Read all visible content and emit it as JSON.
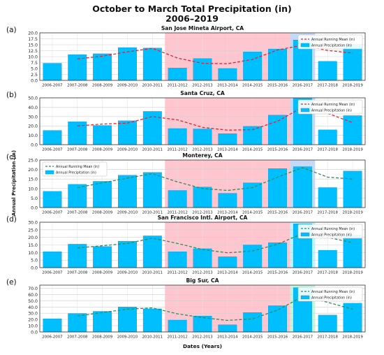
{
  "figure": {
    "title_line1": "October to March Total Precipitation (in)",
    "title_line2": "2006–2019",
    "shared_ylabel": "Annual Precipitation (in)",
    "shared_xlabel": "Dates (Years)"
  },
  "colors": {
    "bar": "#00bfff",
    "bar_edge": "#1d90d0",
    "mean_line": "#e8222a",
    "mean_line_alt": "#2e8b57",
    "pink_band": "#ffc6d0",
    "blue_band": "#c5d8f6",
    "cyan_band": "#bff3ff",
    "green_band": "#c6f5dc"
  },
  "chart_data": [
    {
      "type": "bar",
      "panel_label": "(a)",
      "title": "San Jose Mineta Airport, CA",
      "categories": [
        "2006-2007",
        "2007-2008",
        "2008-2009",
        "2009-2010",
        "2010-2011",
        "2011-2012",
        "2012-2013",
        "2013-2014",
        "2014-2015",
        "2015-2016",
        "2016-2017",
        "2017-2018",
        "2018-2019"
      ],
      "series": [
        {
          "name": "Annual Precipitation (in)",
          "kind": "bar",
          "values": [
            7.2,
            10.8,
            11.2,
            13.8,
            13.6,
            5.2,
            9.2,
            5.0,
            12.0,
            13.2,
            17.0,
            8.0,
            15.2
          ]
        },
        {
          "name": "Annual Running Mean (in)",
          "kind": "line",
          "values": [
            null,
            9.0,
            10.2,
            12.0,
            13.5,
            9.4,
            7.2,
            7.0,
            8.8,
            12.8,
            14.8,
            12.6,
            11.5
          ]
        }
      ],
      "ylim": [
        0,
        20
      ],
      "yticks": [
        "0.0",
        "2.5",
        "5.0",
        "7.5",
        "10.0",
        "12.5",
        "15.0",
        "17.5",
        "20.0"
      ],
      "legend_position": "top-right",
      "line_style": "dashed",
      "bands": [
        {
          "from": "2011-2012",
          "to": "2015-2016",
          "color": "pink"
        },
        {
          "from": "2016-2017",
          "to": "2016-2017",
          "color": "blue"
        }
      ]
    },
    {
      "type": "bar",
      "panel_label": "(b)",
      "title": "Santa Cruz, CA",
      "categories": [
        "2006-2007",
        "2007-2008",
        "2008-2009",
        "2009-2010",
        "2010-2011",
        "2011-2012",
        "2012-2013",
        "2013-2014",
        "2014-2015",
        "2015-2016",
        "2016-2017",
        "2017-2018",
        "2018-2019"
      ],
      "series": [
        {
          "name": "Annual Precipitation (in)",
          "kind": "bar",
          "values": [
            15.2,
            24.5,
            20.5,
            25.5,
            35.5,
            17.2,
            16.8,
            11.8,
            19.5,
            31.5,
            49.5,
            15.8,
            31.0
          ]
        },
        {
          "name": "Annual Running Mean (in)",
          "kind": "line",
          "values": [
            null,
            20.0,
            22.0,
            23.0,
            30.0,
            26.5,
            18.5,
            15.5,
            16.0,
            25.0,
            40.0,
            33.5,
            23.5
          ]
        }
      ],
      "ylim": [
        0,
        50
      ],
      "yticks": [
        "0.0",
        "10.0",
        "20.0",
        "30.0",
        "40.0",
        "50.0"
      ],
      "legend_position": "top-right",
      "line_style": "dashed",
      "bands": [
        {
          "from": "2011-2012",
          "to": "2015-2016",
          "color": "pink"
        },
        {
          "from": "2016-2017",
          "to": "2016-2017",
          "color": "blue"
        }
      ]
    },
    {
      "type": "bar",
      "panel_label": "(c)",
      "title": "Monterey, CA",
      "categories": [
        "2006-2007",
        "2007-2008",
        "2008-2009",
        "2009-2010",
        "2010-2011",
        "2011-2012",
        "2012-2013",
        "2013-2014",
        "2014-2015",
        "2015-2016",
        "2016-2017",
        "2017-2018",
        "2018-2019"
      ],
      "series": [
        {
          "name": "Annual Precipitation (in)",
          "kind": "bar",
          "values": [
            8.5,
            12.2,
            13.8,
            17.0,
            18.5,
            9.0,
            10.8,
            7.5,
            13.0,
            20.5,
            21.5,
            10.5,
            19.2
          ]
        },
        {
          "name": "Annual Running Mean (in)",
          "kind": "line",
          "values": [
            null,
            10.5,
            13.0,
            15.5,
            17.8,
            13.5,
            10.0,
            9.0,
            10.5,
            16.0,
            21.0,
            16.0,
            15.0
          ]
        }
      ],
      "ylim": [
        0,
        25
      ],
      "yticks": [
        "0.0",
        "5.0",
        "10.0",
        "15.0",
        "20.0",
        "25.0"
      ],
      "legend_position": "top-left",
      "line_style": "dashed",
      "bands": [
        {
          "from": "2011-2012",
          "to": "2015-2016",
          "color": "pink"
        },
        {
          "from": "2016-2017",
          "to": "2016-2017",
          "color": "blue"
        }
      ]
    },
    {
      "type": "bar",
      "panel_label": "(d)",
      "title": "San Francisco Intl. Airport, CA",
      "categories": [
        "2006-2007",
        "2007-2008",
        "2008-2009",
        "2009-2010",
        "2010-2011",
        "2011-2012",
        "2012-2013",
        "2013-2014",
        "2014-2015",
        "2015-2016",
        "2016-2017",
        "2017-2018",
        "2018-2019"
      ],
      "series": [
        {
          "name": "Annual Precipitation (in)",
          "kind": "bar",
          "values": [
            10.5,
            15.5,
            14.0,
            17.5,
            21.0,
            10.5,
            12.5,
            7.2,
            15.0,
            16.5,
            29.0,
            11.5,
            21.5
          ]
        },
        {
          "name": "Annual Running Mean (in)",
          "kind": "line",
          "values": [
            null,
            13.0,
            14.5,
            16.0,
            19.5,
            16.0,
            12.0,
            9.8,
            11.0,
            15.5,
            22.5,
            20.0,
            16.5
          ]
        }
      ],
      "ylim": [
        0,
        30
      ],
      "yticks": [
        "0.0",
        "5.0",
        "10.0",
        "15.0",
        "20.0",
        "25.0",
        "30.0"
      ],
      "legend_position": "top-right",
      "line_style": "dashed",
      "bands": [
        {
          "from": "2011-2012",
          "to": "2015-2016",
          "color": "pink"
        },
        {
          "from": "2016-2017",
          "to": "2016-2017",
          "color": "cyan"
        }
      ]
    },
    {
      "type": "bar",
      "panel_label": "(e)",
      "title": "Big Sur, CA",
      "categories": [
        "2006-2007",
        "2007-2008",
        "2008-2009",
        "2009-2010",
        "2010-2011",
        "2011-2012",
        "2012-2013",
        "2013-2014",
        "2014-2015",
        "2015-2016",
        "2016-2017",
        "2017-2018",
        "2018-2019"
      ],
      "series": [
        {
          "name": "Annual Precipitation (in)",
          "kind": "bar",
          "values": [
            21.0,
            29.5,
            33.0,
            40.0,
            37.0,
            19.0,
            25.5,
            11.5,
            31.0,
            42.0,
            71.0,
            27.0,
            46.0
          ]
        },
        {
          "name": "Annual Running Mean (in)",
          "kind": "line",
          "values": [
            null,
            25.5,
            31.0,
            36.5,
            38.5,
            29.0,
            23.0,
            18.5,
            21.0,
            35.0,
            56.5,
            47.5,
            36.5
          ]
        }
      ],
      "ylim": [
        0,
        75
      ],
      "yticks": [
        "0.0",
        "10.0",
        "20.0",
        "30.0",
        "40.0",
        "50.0",
        "60.0",
        "70.0"
      ],
      "legend_position": "top-right",
      "line_style": "dashed",
      "bands": [
        {
          "from": "2011-2012",
          "to": "2015-2016",
          "color": "pink"
        },
        {
          "from": "2016-2017",
          "to": "2016-2017",
          "color": "green"
        }
      ]
    }
  ]
}
